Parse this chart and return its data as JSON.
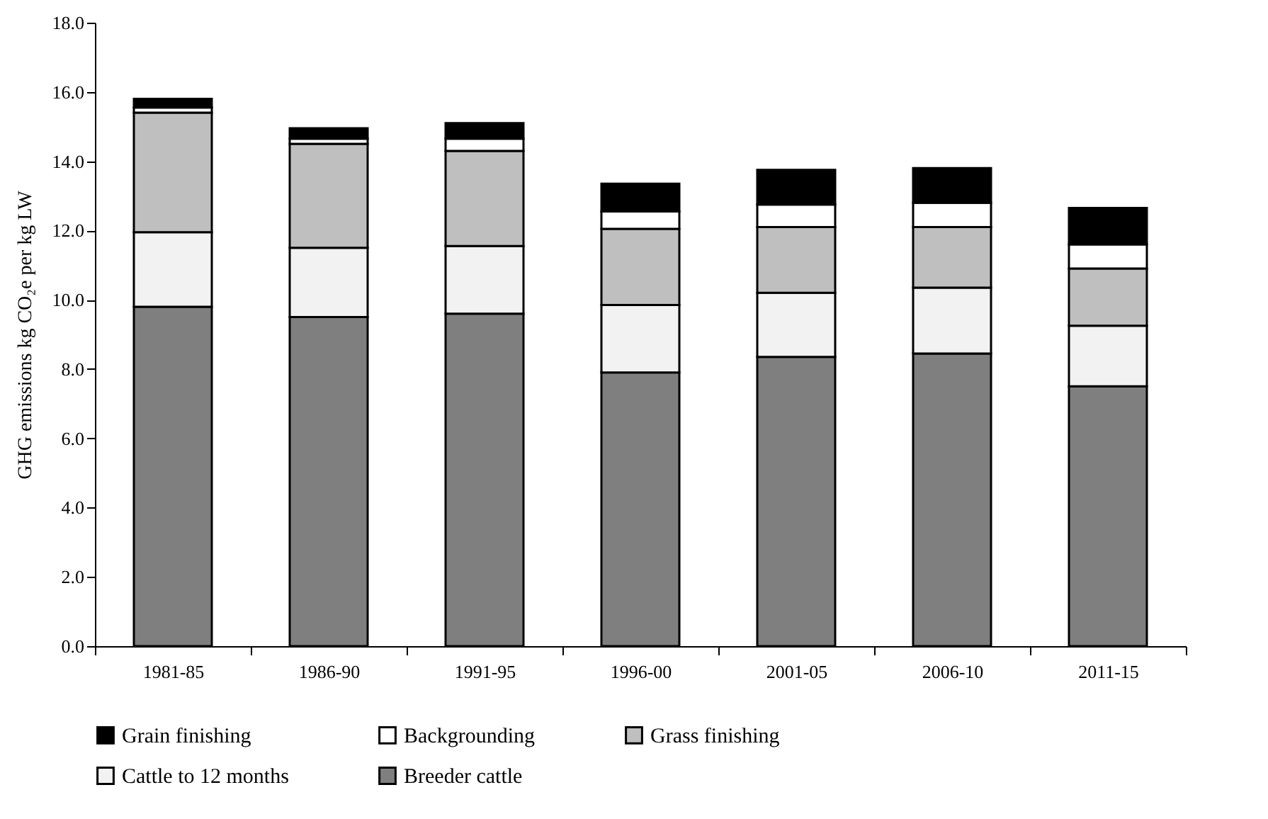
{
  "chart_data": {
    "type": "bar",
    "stacked": true,
    "ylabel": "GHG emissions kg CO₂e per kg LW",
    "categories": [
      "1981-85",
      "1986-90",
      "1991-95",
      "1996-00",
      "2001-05",
      "2006-10",
      "2011-15"
    ],
    "series": [
      {
        "name": "Breeder cattle",
        "color": "#7f7f7f",
        "values": [
          9.8,
          9.5,
          9.6,
          7.9,
          8.35,
          8.45,
          7.5
        ]
      },
      {
        "name": "Cattle to 12 months",
        "color": "#f2f2f2",
        "values": [
          2.15,
          2.0,
          1.95,
          1.95,
          1.85,
          1.9,
          1.75
        ]
      },
      {
        "name": "Grass finishing",
        "color": "#bfbfbf",
        "values": [
          3.45,
          3.0,
          2.75,
          2.2,
          1.9,
          1.75,
          1.65
        ]
      },
      {
        "name": "Backgrounding",
        "color": "#ffffff",
        "values": [
          0.15,
          0.15,
          0.35,
          0.5,
          0.65,
          0.7,
          0.7
        ]
      },
      {
        "name": "Grain finishing",
        "color": "#000000",
        "values": [
          0.25,
          0.3,
          0.45,
          0.8,
          1.0,
          1.0,
          1.05
        ]
      }
    ],
    "ylim": [
      0,
      18
    ],
    "yticks": [
      {
        "value": 0,
        "label": "0.0"
      },
      {
        "value": 2,
        "label": "2.0"
      },
      {
        "value": 4,
        "label": "4.0"
      },
      {
        "value": 6,
        "label": "6.0"
      },
      {
        "value": 8,
        "label": "8.0"
      },
      {
        "value": 10,
        "label": "10.0"
      },
      {
        "value": 12,
        "label": "12.0"
      },
      {
        "value": 14,
        "label": "14.0"
      },
      {
        "value": 16,
        "label": "16.0"
      },
      {
        "value": 18,
        "label": "18.0"
      }
    ],
    "grid": false,
    "legend": "bottom"
  }
}
